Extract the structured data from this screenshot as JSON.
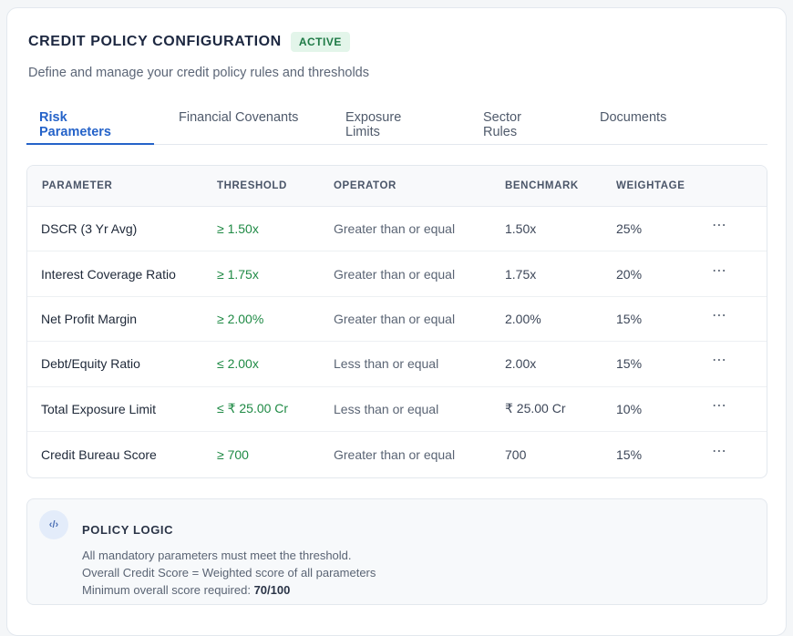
{
  "header": {
    "title": "CREDIT POLICY CONFIGURATION",
    "status_badge": "ACTIVE",
    "subtitle": "Define and manage your credit policy rules and thresholds"
  },
  "tabs": [
    {
      "label": "Risk Parameters",
      "active": true
    },
    {
      "label": "Financial Covenants",
      "active": false
    },
    {
      "label": "Exposure Limits",
      "active": false
    },
    {
      "label": "Sector Rules",
      "active": false
    },
    {
      "label": "Documents",
      "active": false
    }
  ],
  "table": {
    "columns": [
      "PARAMETER",
      "THRESHOLD",
      "OPERATOR",
      "BENCHMARK",
      "WEIGHTAGE"
    ],
    "rows": [
      {
        "parameter": "DSCR (3 Yr Avg)",
        "threshold": "≥ 1.50x",
        "operator": "Greater than or equal",
        "benchmark": "1.50x",
        "weightage": "25%"
      },
      {
        "parameter": "Interest Coverage Ratio",
        "threshold": "≥ 1.75x",
        "operator": "Greater than or equal",
        "benchmark": "1.75x",
        "weightage": "20%"
      },
      {
        "parameter": "Net Profit Margin",
        "threshold": "≥ 2.00%",
        "operator": "Greater than or equal",
        "benchmark": "2.00%",
        "weightage": "15%"
      },
      {
        "parameter": "Debt/Equity Ratio",
        "threshold": "≤ 2.00x",
        "operator": "Less than or equal",
        "benchmark": "2.00x",
        "weightage": "15%"
      },
      {
        "parameter": "Total Exposure Limit",
        "threshold": "≤ ₹ 25.00 Cr",
        "operator": "Less than or equal",
        "benchmark": "₹ 25.00 Cr",
        "weightage": "10%"
      },
      {
        "parameter": "Credit Bureau Score",
        "threshold": "≥ 700",
        "operator": "Greater than or equal",
        "benchmark": "700",
        "weightage": "15%"
      }
    ],
    "row_menu_icon": "more-horizontal-icon"
  },
  "policy_logic": {
    "icon": "code-icon",
    "icon_glyph": "‹/›",
    "title": "POLICY LOGIC",
    "line1": "All mandatory parameters must meet the threshold.",
    "line2": "Overall Credit Score = Weighted score of all parameters",
    "line3_prefix": "Minimum overall score required: ",
    "line3_value": "70/100"
  },
  "colors": {
    "accent": "#2563c9",
    "threshold_green": "#1f8a45",
    "badge_bg": "#e3f5ea",
    "badge_text": "#1e7a46"
  }
}
